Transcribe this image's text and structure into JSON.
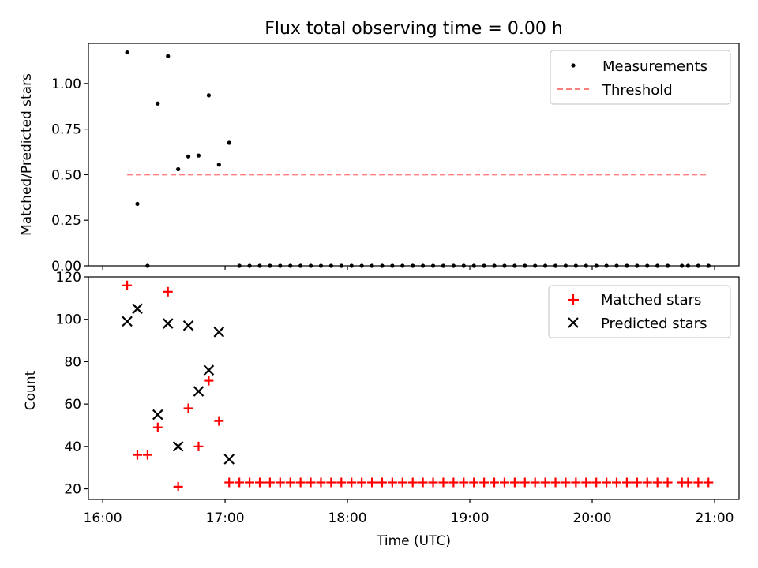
{
  "figure": {
    "title": "Flux total observing time = 0.00 h",
    "xlabel": "Time (UTC)"
  },
  "chart_data": [
    {
      "type": "scatter",
      "title": "Flux total observing time = 0.00 h",
      "ylabel": "Matched/Predicted stars",
      "xlim": [
        "15:53",
        "21:12"
      ],
      "ylim": [
        0,
        1.22
      ],
      "yticks": [
        "0.00",
        "0.25",
        "0.50",
        "0.75",
        "1.00"
      ],
      "ytick_values": [
        0,
        0.25,
        0.5,
        0.75,
        1.0
      ],
      "xtick_values": [
        "16:00",
        "17:00",
        "18:00",
        "19:00",
        "20:00",
        "21:00"
      ],
      "legend": {
        "position": "top-right",
        "entries": [
          "Measurements",
          "Threshold"
        ]
      },
      "series": [
        {
          "name": "Measurements",
          "marker": "dot",
          "color": "#000000",
          "x": [
            "16:12",
            "16:17",
            "16:22",
            "16:27",
            "16:32",
            "16:37",
            "16:42",
            "16:47",
            "16:52",
            "16:57",
            "17:02",
            "17:07",
            "17:12",
            "17:17",
            "17:22",
            "17:27",
            "17:32",
            "17:37",
            "17:42",
            "17:47",
            "17:52",
            "17:57",
            "18:02",
            "18:07",
            "18:12",
            "18:17",
            "18:22",
            "18:27",
            "18:32",
            "18:37",
            "18:42",
            "18:47",
            "18:52",
            "18:57",
            "19:02",
            "19:07",
            "19:12",
            "19:17",
            "19:22",
            "19:27",
            "19:32",
            "19:37",
            "19:42",
            "19:47",
            "19:52",
            "19:57",
            "20:02",
            "20:07",
            "20:12",
            "20:17",
            "20:22",
            "20:27",
            "20:32",
            "20:37",
            "20:44",
            "20:47",
            "20:52",
            "20:57"
          ],
          "y": [
            1.17,
            0.34,
            0.0,
            0.89,
            1.15,
            0.53,
            0.6,
            0.605,
            0.935,
            0.555,
            0.675,
            0,
            0,
            0,
            0,
            0,
            0,
            0,
            0,
            0,
            0,
            0,
            0,
            0,
            0,
            0,
            0,
            0,
            0,
            0,
            0,
            0,
            0,
            0,
            0,
            0,
            0,
            0,
            0,
            0,
            0,
            0,
            0,
            0,
            0,
            0,
            0,
            0,
            0,
            0,
            0,
            0,
            0,
            0,
            0,
            0,
            0,
            0
          ]
        },
        {
          "name": "Threshold",
          "style": "dashed",
          "color": "#ff7f7f",
          "x": [
            "16:12",
            "20:57"
          ],
          "y": [
            0.5,
            0.5
          ]
        }
      ]
    },
    {
      "type": "scatter",
      "ylabel": "Count",
      "xlabel": "Time (UTC)",
      "xlim": [
        "15:53",
        "21:12"
      ],
      "ylim": [
        15,
        120
      ],
      "yticks": [
        "20",
        "40",
        "60",
        "80",
        "100",
        "120"
      ],
      "ytick_values": [
        20,
        40,
        60,
        80,
        100,
        120
      ],
      "xticks": [
        "16:00",
        "17:00",
        "18:00",
        "19:00",
        "20:00",
        "21:00"
      ],
      "xtick_values": [
        "16:00",
        "17:00",
        "18:00",
        "19:00",
        "20:00",
        "21:00"
      ],
      "legend": {
        "position": "top-right",
        "entries": [
          "Matched stars",
          "Predicted stars"
        ]
      },
      "series": [
        {
          "name": "Matched stars",
          "marker": "plus",
          "color": "#ff0000",
          "x": [
            "16:12",
            "16:17",
            "16:22",
            "16:27",
            "16:32",
            "16:37",
            "16:42",
            "16:47",
            "16:52",
            "16:57",
            "17:02",
            "17:07",
            "17:12",
            "17:17",
            "17:22",
            "17:27",
            "17:32",
            "17:37",
            "17:42",
            "17:47",
            "17:52",
            "17:57",
            "18:02",
            "18:07",
            "18:12",
            "18:17",
            "18:22",
            "18:27",
            "18:32",
            "18:37",
            "18:42",
            "18:47",
            "18:52",
            "18:57",
            "19:02",
            "19:07",
            "19:12",
            "19:17",
            "19:22",
            "19:27",
            "19:32",
            "19:37",
            "19:42",
            "19:47",
            "19:52",
            "19:57",
            "20:02",
            "20:07",
            "20:12",
            "20:17",
            "20:22",
            "20:27",
            "20:32",
            "20:37",
            "20:44",
            "20:47",
            "20:52",
            "20:57"
          ],
          "y": [
            116,
            36,
            36,
            49,
            113,
            21,
            58,
            40,
            71,
            52,
            23,
            23,
            23,
            23,
            23,
            23,
            23,
            23,
            23,
            23,
            23,
            23,
            23,
            23,
            23,
            23,
            23,
            23,
            23,
            23,
            23,
            23,
            23,
            23,
            23,
            23,
            23,
            23,
            23,
            23,
            23,
            23,
            23,
            23,
            23,
            23,
            23,
            23,
            23,
            23,
            23,
            23,
            23,
            23,
            23,
            23,
            23,
            23
          ]
        },
        {
          "name": "Predicted stars",
          "marker": "x",
          "color": "#000000",
          "x": [
            "16:12",
            "16:17",
            "16:27",
            "16:32",
            "16:37",
            "16:42",
            "16:47",
            "16:52",
            "16:57",
            "17:02"
          ],
          "y": [
            99,
            105,
            55,
            98,
            40,
            97,
            66,
            76,
            94,
            34
          ]
        }
      ]
    }
  ]
}
